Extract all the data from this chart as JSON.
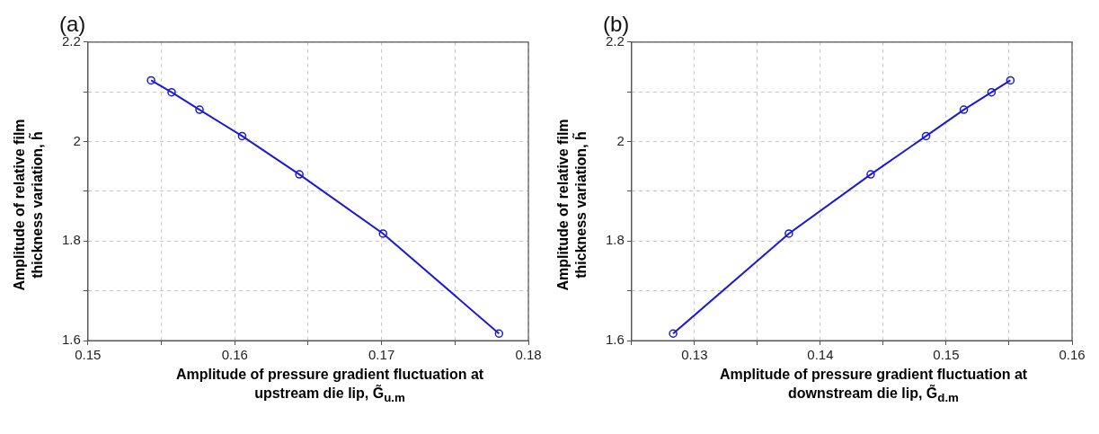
{
  "chart_data": [
    {
      "type": "line",
      "title": "(a)",
      "xlabel": "Amplitude of pressure gradient fluctuation at upstream die lip, G̃$_{u.m}$",
      "ylabel": "Amplitude of relative film thickness variation, h̃",
      "x": [
        0.1543,
        0.1557,
        0.1576,
        0.1605,
        0.1644,
        0.1701,
        0.178
      ],
      "series": [
        {
          "color": "#1a1adc",
          "values": [
            2.123,
            2.099,
            2.064,
            2.011,
            1.934,
            1.815,
            1.614
          ]
        }
      ],
      "xlim": [
        0.15,
        0.18
      ],
      "xticks": [
        0.15,
        {
          "value": 0.155,
          "label": null
        },
        0.16,
        {
          "value": 0.165,
          "label": null
        },
        0.17,
        {
          "value": 0.175,
          "label": null
        },
        0.18
      ],
      "ylim": [
        1.6,
        2.2
      ],
      "yticks": [
        1.6,
        {
          "value": 1.7,
          "label": null
        },
        1.8,
        {
          "value": 1.9,
          "label": null
        },
        2,
        {
          "value": 2.1,
          "label": null
        },
        2.2
      ],
      "grid": true,
      "marker": "circle",
      "line_style": "solid"
    },
    {
      "type": "line",
      "title": "(b)",
      "xlabel": "Amplitude of pressure gradient fluctuation at downstream die lip, G̃$_{d.m}$",
      "ylabel": "Amplitude of relative film thickness variation, h̃",
      "x": [
        0.1283,
        0.1375,
        0.144,
        0.1484,
        0.1514,
        0.1536,
        0.1551
      ],
      "series": [
        {
          "color": "#1a1adc",
          "values": [
            1.614,
            1.815,
            1.934,
            2.011,
            2.064,
            2.099,
            2.123
          ]
        }
      ],
      "xlim": [
        0.125,
        0.16
      ],
      "xticks": [
        {
          "value": 0.125,
          "label": null
        },
        0.13,
        {
          "value": 0.135,
          "label": null
        },
        0.14,
        {
          "value": 0.145,
          "label": null
        },
        0.15,
        {
          "value": 0.155,
          "label": null
        },
        0.16
      ],
      "ylim": [
        1.6,
        2.2
      ],
      "yticks": [
        1.6,
        {
          "value": 1.7,
          "label": null
        },
        1.8,
        {
          "value": 1.9,
          "label": null
        },
        2,
        {
          "value": 2.1,
          "label": null
        },
        2.2
      ],
      "grid": true,
      "marker": "circle",
      "line_style": "solid"
    }
  ]
}
